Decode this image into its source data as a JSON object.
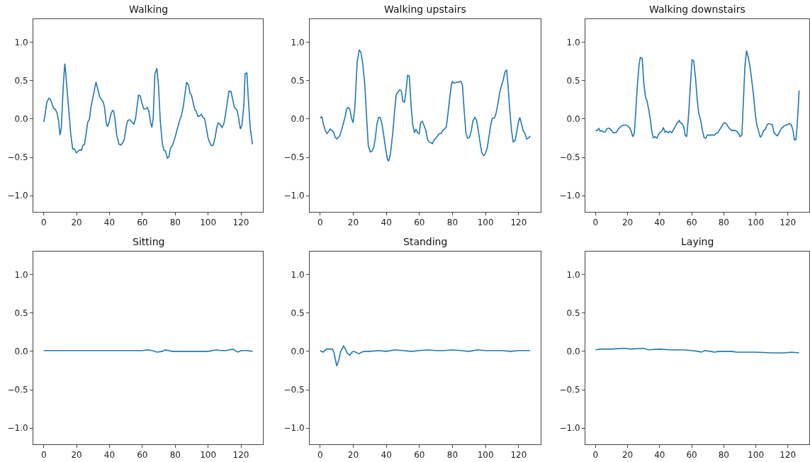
{
  "chart_data": [
    {
      "type": "line",
      "title": "Walking",
      "color": "#1f77b4",
      "xlim": [
        -6.35,
        133.35
      ],
      "ylim": [
        -1.21,
        1.3
      ],
      "xticks": [
        0,
        20,
        40,
        60,
        80,
        100,
        120
      ],
      "yticks": [
        {
          "value": -1,
          "label": "−1.0"
        },
        {
          "value": -0.5,
          "label": "−0.5"
        },
        {
          "value": 0,
          "label": "0.0"
        },
        {
          "value": 0.5,
          "label": "0.5"
        },
        {
          "value": 1,
          "label": "1.0"
        }
      ],
      "x": [
        0,
        0.7,
        1.9,
        3.2,
        4,
        5,
        6,
        7.2,
        8.2,
        9,
        9.9,
        10.7,
        11.9,
        12.8,
        13.3,
        14.3,
        15.3,
        16.5,
        17.6,
        18.6,
        19.8,
        21,
        22.2,
        22.9,
        23.9,
        24.8,
        25.8,
        26.8,
        27.7,
        28.7,
        30.1,
        31.8,
        33,
        34,
        35.4,
        36.2,
        37,
        38,
        38.8,
        39.8,
        40.8,
        41.8,
        42.6,
        43.4,
        44.4,
        45.8,
        47,
        48,
        49,
        50.1,
        51.1,
        52.3,
        53.7,
        54.9,
        55.9,
        56.9,
        57.7,
        58.7,
        59.7,
        60.9,
        62,
        63,
        64,
        64.9,
        65.8,
        66.6,
        67.6,
        68.8,
        69.8,
        70.9,
        72.1,
        73.1,
        74.1,
        75.2,
        76.2,
        77.1,
        78.4,
        79.5,
        80.9,
        82.4,
        83.8,
        84.9,
        85.9,
        86.9,
        88.1,
        89.1,
        89.9,
        90.9,
        91.9,
        92.8,
        93.8,
        94.8,
        95.9,
        96.9,
        97.9,
        98.9,
        99.9,
        101,
        102.1,
        103.1,
        104.2,
        105.3,
        106.2,
        107.2,
        108.5,
        109.6,
        110.6,
        111.7,
        112.7,
        113.9,
        114.9,
        116,
        117.5,
        118.6,
        119.6,
        120.6,
        121.8,
        122.5,
        123.6,
        124.6,
        125.6,
        127
      ],
      "values": [
        -0.04,
        0.04,
        0.22,
        0.27,
        0.26,
        0.2,
        0.14,
        0.12,
        0.07,
        -0.02,
        -0.21,
        -0.12,
        0.44,
        0.72,
        0.62,
        0.35,
        0.1,
        -0.21,
        -0.39,
        -0.39,
        -0.44,
        -0.42,
        -0.4,
        -0.41,
        -0.34,
        -0.33,
        -0.19,
        -0.04,
        -0.01,
        0.15,
        0.3,
        0.48,
        0.38,
        0.29,
        0.24,
        0.22,
        0.15,
        -0.05,
        -0.1,
        -0.04,
        0.06,
        0.11,
        0.1,
        -0.01,
        -0.21,
        -0.33,
        -0.34,
        -0.31,
        -0.27,
        -0.11,
        -0.02,
        -0.01,
        -0.04,
        -0.07,
        0.01,
        0.18,
        0.31,
        0.3,
        0.21,
        0.13,
        0.13,
        0.15,
        0.1,
        -0.04,
        -0.11,
        0.01,
        0.58,
        0.66,
        0.44,
        -0.02,
        -0.31,
        -0.41,
        -0.42,
        -0.51,
        -0.49,
        -0.38,
        -0.34,
        -0.27,
        -0.16,
        -0.04,
        0.05,
        0.16,
        0.32,
        0.48,
        0.44,
        0.33,
        0.31,
        0.21,
        0.12,
        0.1,
        0.03,
        0.04,
        0.06,
        0.02,
        0,
        -0.11,
        -0.24,
        -0.31,
        -0.35,
        -0.34,
        -0.25,
        -0.11,
        -0.05,
        -0.07,
        -0.11,
        -0.06,
        0.06,
        0.22,
        0.36,
        0.36,
        0.26,
        0.15,
        0.12,
        0.01,
        -0.13,
        -0.08,
        0.19,
        0.59,
        0.6,
        0.22,
        -0.11,
        -0.33
      ]
    },
    {
      "type": "line",
      "title": "Walking upstairs",
      "color": "#1f77b4",
      "xlim": [
        -6.35,
        133.35
      ],
      "ylim": [
        -1.21,
        1.3
      ],
      "xticks": [
        0,
        20,
        40,
        60,
        80,
        100,
        120
      ],
      "yticks": [
        {
          "value": -1,
          "label": "−1.0"
        },
        {
          "value": -0.5,
          "label": "−0.5"
        },
        {
          "value": 0,
          "label": "0.0"
        },
        {
          "value": 0.5,
          "label": "0.5"
        },
        {
          "value": 1,
          "label": "1.0"
        }
      ],
      "x": [
        0,
        1,
        2,
        3.1,
        4.1,
        5,
        6,
        7,
        8.1,
        9.1,
        10,
        11,
        12,
        13.1,
        14.1,
        15,
        16,
        17,
        17.9,
        18.9,
        19.9,
        21,
        22.4,
        23.6,
        24.6,
        25.7,
        27,
        28.1,
        29.1,
        30.3,
        31.3,
        32.4,
        33.4,
        34.3,
        35.3,
        36.3,
        37.4,
        38.4,
        39.6,
        40.6,
        41.3,
        42.4,
        43.9,
        45,
        46,
        47,
        48.1,
        49.1,
        50,
        51,
        52,
        52.9,
        53.9,
        54.9,
        56,
        57,
        57.9,
        58.9,
        59.9,
        60.7,
        61.7,
        62.7,
        63.9,
        64.9,
        66,
        67,
        67.9,
        68.9,
        69.9,
        71,
        72,
        73.1,
        74.1,
        75.3,
        76.3,
        77.1,
        78.1,
        79.3,
        79.9,
        80.7,
        81.7,
        82.7,
        83.9,
        85,
        86,
        87,
        88.1,
        89.1,
        90.3,
        91.4,
        92.4,
        93.6,
        94.6,
        95.6,
        96.7,
        97.7,
        98.9,
        99.9,
        101,
        102,
        103.1,
        104.1,
        105.3,
        106.3,
        107.4,
        108.6,
        109.6,
        110.6,
        111.7,
        112.7,
        113.6,
        114.6,
        115.7,
        116.7,
        117.9,
        118.9,
        119.9,
        120.7,
        121.7,
        122.7,
        123.9,
        124.9,
        126,
        127
      ],
      "values": [
        0.01,
        0.03,
        -0.07,
        -0.15,
        -0.19,
        -0.17,
        -0.13,
        -0.15,
        -0.17,
        -0.24,
        -0.26,
        -0.24,
        -0.21,
        -0.13,
        -0.05,
        0.02,
        0.13,
        0.15,
        0.13,
        0.01,
        -0.05,
        0.16,
        0.75,
        0.9,
        0.87,
        0.73,
        0.44,
        0.01,
        -0.35,
        -0.43,
        -0.42,
        -0.37,
        -0.24,
        -0.07,
        0.02,
        0.02,
        -0.07,
        -0.21,
        -0.39,
        -0.52,
        -0.55,
        -0.47,
        -0.18,
        0.1,
        0.32,
        0.35,
        0.38,
        0.36,
        0.23,
        0.22,
        0.38,
        0.57,
        0.56,
        0.19,
        -0.08,
        -0.18,
        -0.13,
        -0.18,
        -0.19,
        -0.05,
        -0.03,
        -0.08,
        -0.15,
        -0.27,
        -0.3,
        -0.31,
        -0.32,
        -0.27,
        -0.25,
        -0.22,
        -0.19,
        -0.19,
        -0.15,
        -0.13,
        -0.1,
        0.04,
        0.23,
        0.44,
        0.49,
        0.47,
        0.47,
        0.48,
        0.48,
        0.49,
        0.44,
        0.13,
        -0.18,
        -0.25,
        -0.24,
        -0.15,
        -0.02,
        0.02,
        -0.02,
        -0.15,
        -0.31,
        -0.44,
        -0.48,
        -0.45,
        -0.38,
        -0.24,
        -0.08,
        0.01,
        0.01,
        0.07,
        0.19,
        0.35,
        0.43,
        0.5,
        0.61,
        0.64,
        0.44,
        0.13,
        -0.15,
        -0.3,
        -0.28,
        -0.16,
        -0.04,
        0.02,
        -0.06,
        -0.15,
        -0.19,
        -0.26,
        -0.25,
        -0.22
      ]
    },
    {
      "type": "line",
      "title": "Walking downstairs",
      "color": "#1f77b4",
      "xlim": [
        -6.35,
        133.35
      ],
      "ylim": [
        -1.21,
        1.3
      ],
      "xticks": [
        0,
        20,
        40,
        60,
        80,
        100,
        120
      ],
      "yticks": [
        {
          "value": -1,
          "label": "−1.0"
        },
        {
          "value": -0.5,
          "label": "−0.5"
        },
        {
          "value": 0,
          "label": "0.0"
        },
        {
          "value": 0.5,
          "label": "0.5"
        },
        {
          "value": 1,
          "label": "1.0"
        }
      ],
      "x": [
        0,
        1,
        2,
        2.9,
        3.9,
        4.9,
        6,
        7,
        8.2,
        9.2,
        10,
        11,
        12.2,
        13.2,
        14.2,
        15.3,
        16.3,
        17.5,
        18.9,
        19.9,
        21.1,
        22.1,
        23.2,
        24.2,
        25,
        26.1,
        27.1,
        27.9,
        29.1,
        30.1,
        31.1,
        32.1,
        33.2,
        34.2,
        35.1,
        36.1,
        37.1,
        38.3,
        39.3,
        40.4,
        41.4,
        42.3,
        43.3,
        44.4,
        45.4,
        46.4,
        47.6,
        48.6,
        49.7,
        50.7,
        52.2,
        52.9,
        54,
        55,
        55.9,
        56.9,
        57.9,
        59.1,
        60.2,
        61.2,
        62.4,
        63.4,
        64.4,
        65.5,
        66.7,
        67.7,
        68.7,
        69.8,
        70.9,
        71.9,
        73.1,
        74.1,
        75.2,
        76.2,
        77.4,
        78.4,
        79.4,
        80.5,
        81.5,
        82.7,
        83.7,
        84.8,
        85.8,
        87,
        88,
        89.2,
        90.2,
        91.3,
        92.3,
        93.2,
        94.2,
        95.2,
        96.3,
        97.3,
        98.5,
        99.5,
        100.6,
        101.6,
        102.8,
        103.8,
        104.9,
        105.9,
        107.1,
        108.1,
        109.2,
        110.2,
        111.4,
        112.4,
        113.5,
        114.6,
        115.7,
        116.7,
        117.8,
        118.9,
        120,
        121,
        122.2,
        123.2,
        124,
        125,
        125.7,
        126.4,
        127
      ],
      "values": [
        -0.15,
        -0.15,
        -0.12,
        -0.16,
        -0.15,
        -0.17,
        -0.17,
        -0.13,
        -0.12,
        -0.13,
        -0.15,
        -0.18,
        -0.18,
        -0.17,
        -0.13,
        -0.11,
        -0.09,
        -0.08,
        -0.08,
        -0.09,
        -0.11,
        -0.15,
        -0.23,
        -0.19,
        0.07,
        0.44,
        0.69,
        0.8,
        0.79,
        0.47,
        0.29,
        0.24,
        0.12,
        -0.01,
        -0.16,
        -0.25,
        -0.23,
        -0.25,
        -0.2,
        -0.17,
        -0.16,
        -0.11,
        -0.17,
        -0.16,
        -0.18,
        -0.16,
        -0.18,
        -0.14,
        -0.1,
        -0.06,
        -0.02,
        -0.05,
        -0.06,
        -0.1,
        -0.21,
        -0.23,
        0.01,
        0.41,
        0.77,
        0.76,
        0.53,
        0.26,
        0.07,
        -0.01,
        -0.15,
        -0.24,
        -0.25,
        -0.21,
        -0.21,
        -0.21,
        -0.21,
        -0.21,
        -0.19,
        -0.18,
        -0.14,
        -0.11,
        -0.07,
        -0.05,
        -0.06,
        -0.1,
        -0.13,
        -0.15,
        -0.15,
        -0.15,
        -0.16,
        -0.19,
        -0.23,
        -0.21,
        0.26,
        0.69,
        0.89,
        0.81,
        0.69,
        0.53,
        0.32,
        0.1,
        -0.08,
        -0.15,
        -0.24,
        -0.21,
        -0.15,
        -0.14,
        -0.07,
        -0.06,
        -0.07,
        -0.07,
        -0.18,
        -0.2,
        -0.22,
        -0.18,
        -0.13,
        -0.11,
        -0.09,
        -0.08,
        -0.07,
        -0.06,
        -0.08,
        -0.15,
        -0.27,
        -0.27,
        -0.11,
        0.13,
        0.37
      ]
    },
    {
      "type": "line",
      "title": "Sitting",
      "color": "#1f77b4",
      "xlim": [
        -6.35,
        133.35
      ],
      "ylim": [
        -1.21,
        1.3
      ],
      "xticks": [
        0,
        20,
        40,
        60,
        80,
        100,
        120
      ],
      "yticks": [
        {
          "value": -1,
          "label": "−1.0"
        },
        {
          "value": -0.5,
          "label": "−0.5"
        },
        {
          "value": 0,
          "label": "0.0"
        },
        {
          "value": 0.5,
          "label": "0.5"
        },
        {
          "value": 1,
          "label": "1.0"
        }
      ],
      "x": [
        0,
        10,
        20,
        30,
        40,
        50,
        55,
        60,
        63,
        66,
        69,
        72,
        74,
        76,
        78,
        85,
        95,
        100,
        105,
        108,
        111,
        115,
        118,
        120,
        124,
        127
      ],
      "values": [
        0.01,
        0.01,
        0.01,
        0.01,
        0.01,
        0.01,
        0.01,
        0.01,
        0.02,
        0.01,
        -0.01,
        0.0,
        0.02,
        0.01,
        0.0,
        0.0,
        0.0,
        0.0,
        0.02,
        0.01,
        0.01,
        0.03,
        -0.01,
        0.01,
        0.01,
        0.0
      ]
    },
    {
      "type": "line",
      "title": "Standing",
      "color": "#1f77b4",
      "xlim": [
        -6.35,
        133.35
      ],
      "ylim": [
        -1.21,
        1.3
      ],
      "xticks": [
        0,
        20,
        40,
        60,
        80,
        100,
        120
      ],
      "yticks": [
        {
          "value": -1,
          "label": "−1.0"
        },
        {
          "value": -0.5,
          "label": "−0.5"
        },
        {
          "value": 0,
          "label": "0.0"
        },
        {
          "value": 0.5,
          "label": "0.5"
        },
        {
          "value": 1,
          "label": "1.0"
        }
      ],
      "x": [
        0,
        1.7,
        3.9,
        7.4,
        8.4,
        10,
        11.3,
        12.4,
        14.1,
        15.3,
        16.3,
        17.9,
        19.3,
        20.3,
        22.4,
        23.6,
        25,
        27,
        30,
        35,
        40,
        45,
        50,
        55,
        60,
        65,
        70,
        75,
        80,
        85,
        90,
        95,
        100,
        105,
        110,
        115,
        120,
        127
      ],
      "values": [
        0.01,
        -0.01,
        0.03,
        0.03,
        -0.02,
        -0.19,
        -0.11,
        0.0,
        0.07,
        0.03,
        -0.02,
        -0.05,
        -0.01,
        0.0,
        -0.02,
        -0.03,
        -0.01,
        0.0,
        0.0,
        0.01,
        0.0,
        0.02,
        0.01,
        0.0,
        0.01,
        0.02,
        0.01,
        0.01,
        0.02,
        0.01,
        0.0,
        0.02,
        0.01,
        0.01,
        0.01,
        0.0,
        0.01,
        0.01
      ]
    },
    {
      "type": "line",
      "title": "Laying",
      "color": "#1f77b4",
      "xlim": [
        -6.35,
        133.35
      ],
      "ylim": [
        -1.21,
        1.3
      ],
      "xticks": [
        0,
        20,
        40,
        60,
        80,
        100,
        120
      ],
      "yticks": [
        {
          "value": -1,
          "label": "−1.0"
        },
        {
          "value": -0.5,
          "label": "−0.5"
        },
        {
          "value": 0,
          "label": "0.0"
        },
        {
          "value": 0.5,
          "label": "0.5"
        },
        {
          "value": 1,
          "label": "1.0"
        }
      ],
      "x": [
        0,
        3,
        10,
        18,
        22,
        30,
        33,
        40,
        46,
        55,
        60,
        64,
        66,
        68,
        72,
        74,
        77,
        85,
        88,
        95,
        100,
        110,
        116,
        118,
        122,
        127
      ],
      "values": [
        0.02,
        0.03,
        0.03,
        0.04,
        0.03,
        0.04,
        0.02,
        0.03,
        0.02,
        0.02,
        0.01,
        0.0,
        -0.01,
        0.01,
        0.0,
        -0.01,
        0.0,
        0.0,
        -0.01,
        -0.01,
        -0.01,
        -0.02,
        -0.02,
        -0.02,
        -0.01,
        -0.02
      ]
    }
  ]
}
